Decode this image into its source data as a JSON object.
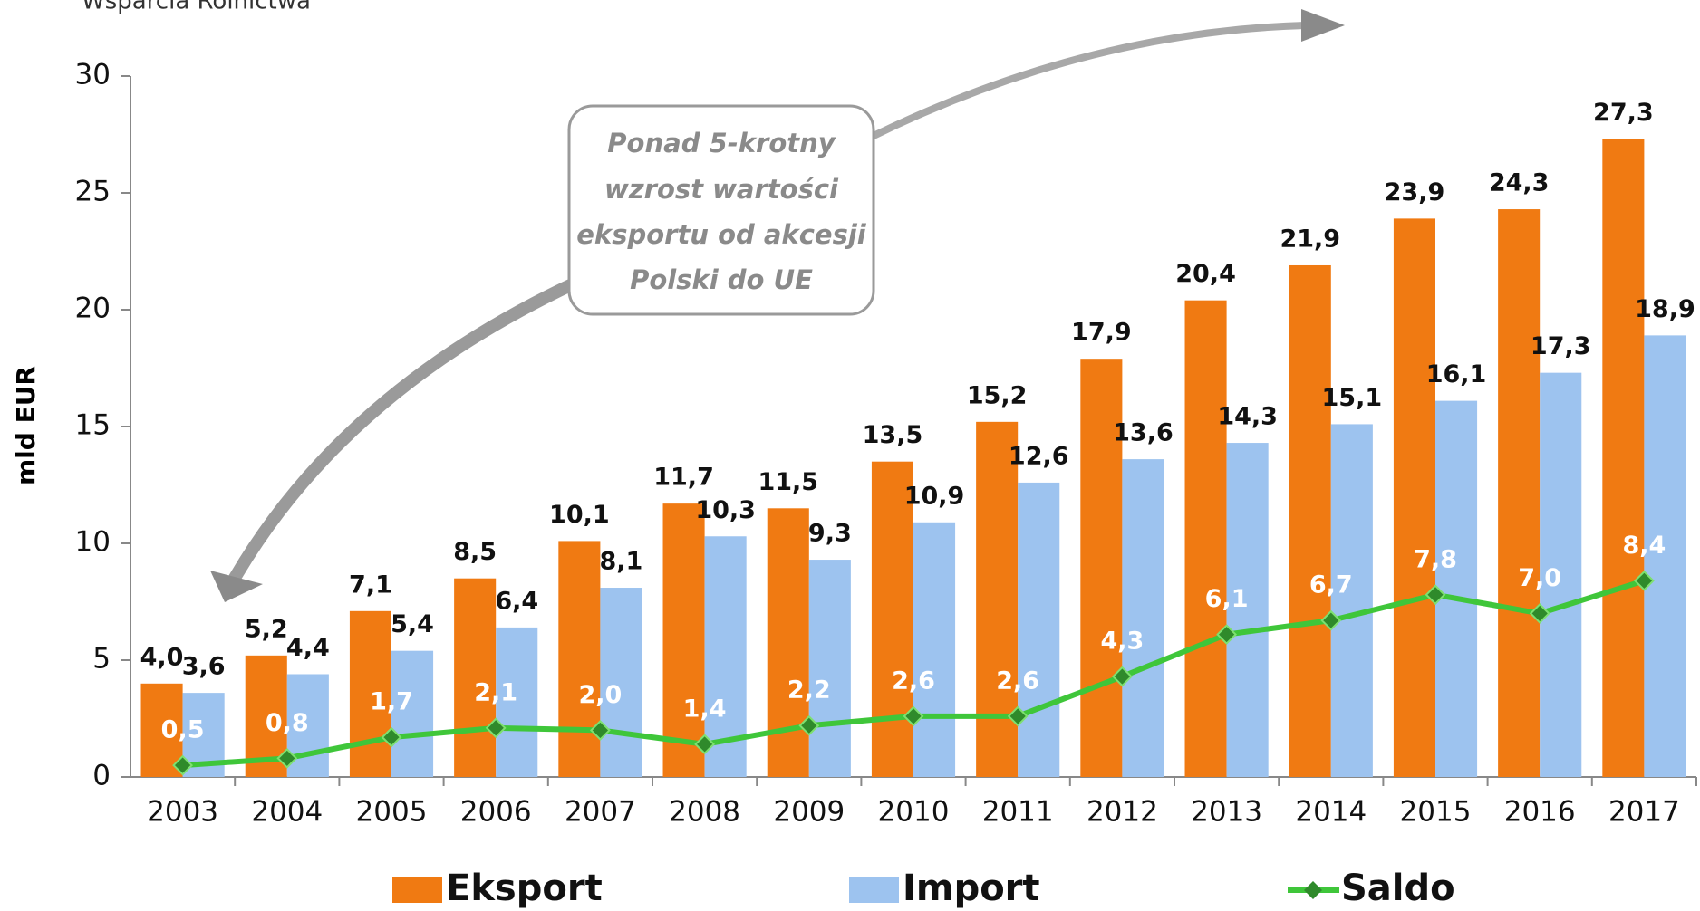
{
  "chart_data": {
    "type": "bar",
    "subtitle": "Wsparcia Rolnictwa",
    "ylabel": "mld EUR",
    "annotation": [
      "Ponad 5-krotny",
      "wzrost wartości",
      "eksportu od akcesji",
      "Polski do UE"
    ],
    "categories": [
      "2003",
      "2004",
      "2005",
      "2006",
      "2007",
      "2008",
      "2009",
      "2010",
      "2011",
      "2012",
      "2013",
      "2014",
      "2015",
      "2016",
      "2017"
    ],
    "ylim": [
      0,
      30
    ],
    "yticks": [
      0,
      5,
      10,
      15,
      20,
      25,
      30
    ],
    "series": [
      {
        "name": "Eksport",
        "type": "bar",
        "color": "#f07a12",
        "values": [
          4.0,
          5.2,
          7.1,
          8.5,
          10.1,
          11.7,
          11.5,
          13.5,
          15.2,
          17.9,
          20.4,
          21.9,
          23.9,
          24.3,
          27.3
        ],
        "value_labels": [
          "4,0",
          "5,2",
          "7,1",
          "8,5",
          "10,1",
          "11,7",
          "11,5",
          "13,5",
          "15,2",
          "17,9",
          "20,4",
          "21,9",
          "23,9",
          "24,3",
          "27,3"
        ]
      },
      {
        "name": "Import",
        "type": "bar",
        "color": "#9dc3ef",
        "values": [
          3.6,
          4.4,
          5.4,
          6.4,
          8.1,
          10.3,
          9.3,
          10.9,
          12.6,
          13.6,
          14.3,
          15.1,
          16.1,
          17.3,
          18.9
        ],
        "value_labels": [
          "3,6",
          "4,4",
          "5,4",
          "6,4",
          "8,1",
          "10,3",
          "9,3",
          "10,9",
          "12,6",
          "13,6",
          "14,3",
          "15,1",
          "16,1",
          "17,3",
          "18,9"
        ]
      },
      {
        "name": "Saldo",
        "type": "line",
        "color": "#3fc63a",
        "values": [
          0.5,
          0.8,
          1.7,
          2.1,
          2.0,
          1.4,
          2.2,
          2.6,
          2.6,
          4.3,
          6.1,
          6.7,
          7.8,
          7.0,
          8.4
        ],
        "value_labels": [
          "0,5",
          "0,8",
          "1,7",
          "2,1",
          "2,0",
          "1,4",
          "2,2",
          "2,6",
          "2,6",
          "4,3",
          "6,1",
          "6,7",
          "7,8",
          "7,0",
          "8,4"
        ]
      }
    ]
  }
}
